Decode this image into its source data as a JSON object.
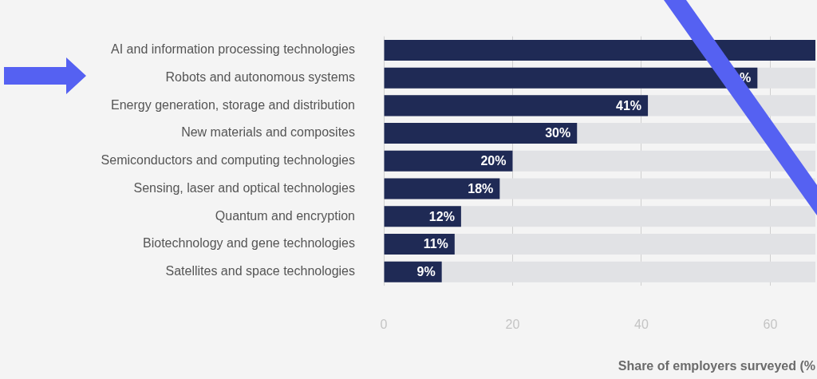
{
  "chart_data": {
    "type": "bar",
    "orientation": "horizontal",
    "categories": [
      "AI and information processing technologies",
      "Robots and autonomous systems",
      "Energy generation, storage and distribution",
      "New materials and composites",
      "Semiconductors and computing technologies",
      "Sensing, laser and optical technologies",
      "Quantum and encryption",
      "Biotechnology and gene technologies",
      "Satellites and space technologies"
    ],
    "values": [
      67,
      58,
      41,
      30,
      20,
      18,
      12,
      11,
      9
    ],
    "value_labels": [
      null,
      "%",
      "41%",
      "30%",
      "20%",
      "18%",
      "12%",
      "11%",
      "9%"
    ],
    "color": "#1f2a55",
    "xlim": [
      0,
      67
    ],
    "xticks": [
      0,
      20,
      40,
      60
    ],
    "xlabel": "Share of employers surveyed (%",
    "grid": "x",
    "legend": false
  }
}
